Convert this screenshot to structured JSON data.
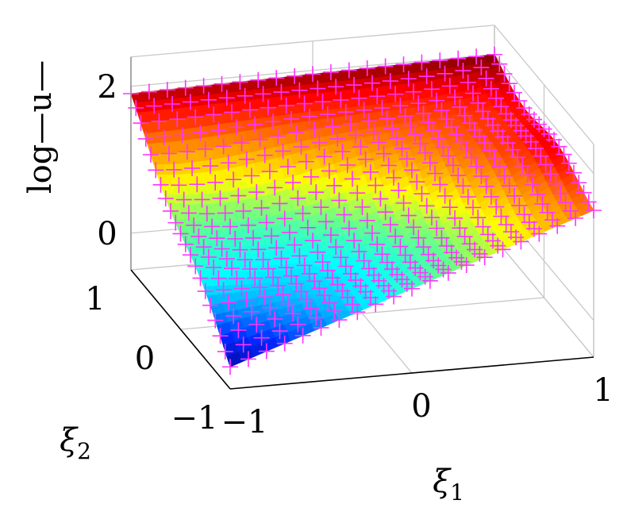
{
  "chart_data": {
    "type": "surface",
    "title": "",
    "xlabel": "ξ",
    "xlabel_sub": "1",
    "ylabel": "ξ",
    "ylabel_sub": "2",
    "zlabel": "log—u—",
    "xlim": [
      -1,
      1
    ],
    "ylim": [
      -1,
      1
    ],
    "zlim": [
      -0.5,
      2.4
    ],
    "x_ticks": [
      "−1",
      "0",
      "1"
    ],
    "y_ticks": [
      "−1",
      "0",
      "1"
    ],
    "z_ticks": [
      "0",
      "2"
    ],
    "x_tick_values": [
      -1,
      0,
      1
    ],
    "y_tick_values": [
      -1,
      0,
      1
    ],
    "z_tick_values": [
      0,
      2
    ],
    "grid": true,
    "colormap": "jet",
    "surface_corner_values": {
      "x-1_y-1": -0.2,
      "x1_y-1": 1.5,
      "x-1_y1": 1.9,
      "x1_y1": 2.0
    },
    "marker_series": {
      "marker": "plus",
      "color": "#ff33ff"
    }
  }
}
